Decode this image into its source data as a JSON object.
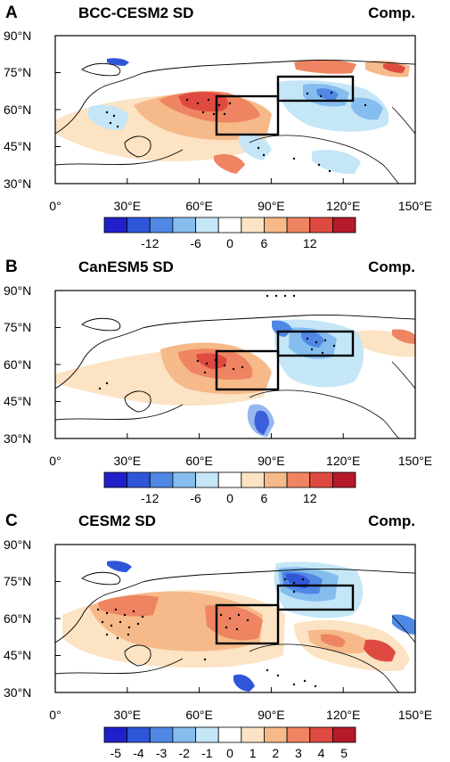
{
  "colors": {
    "scale": [
      "#1f20c9",
      "#2f56d9",
      "#4f88e5",
      "#85bdef",
      "#c4e6f7",
      "#ffffff",
      "#fbe3c3",
      "#f6b989",
      "#ee8461",
      "#df4a40",
      "#b5192a"
    ],
    "coast": "#000000",
    "box": "#000000"
  },
  "x_ticks": [
    "0°",
    "30°E",
    "60°E",
    "90°E",
    "120°E",
    "150°E"
  ],
  "y_ticks": [
    "90°N",
    "75°N",
    "60°N",
    "45°N",
    "30°N"
  ],
  "panels": [
    {
      "letter": "A",
      "title": "BCC-CESM2 SD",
      "tag": "Comp.",
      "colorbar_labels": [
        "-12",
        "-6",
        "0",
        "6",
        "12"
      ]
    },
    {
      "letter": "B",
      "title": "CanESM5 SD",
      "tag": "Comp.",
      "colorbar_labels": [
        "-12",
        "-6",
        "0",
        "6",
        "12"
      ]
    },
    {
      "letter": "C",
      "title": "CESM2 SD",
      "tag": "Comp.",
      "colorbar_labels": [
        "-5",
        "-4",
        "-3",
        "-2",
        "-1",
        "0",
        "1",
        "2",
        "3",
        "4",
        "5"
      ]
    }
  ]
}
